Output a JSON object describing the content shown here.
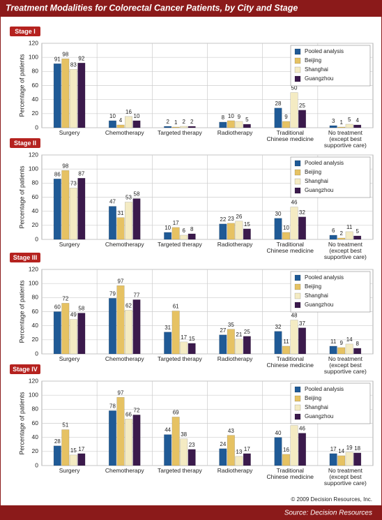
{
  "title": "Treatment Modalities for Colorectal Cancer Patients, by City and Stage",
  "copyright": "© 2009 Decision Resources, Inc.",
  "source": "Source: Decision Resources",
  "chart_data": [
    {
      "type": "bar",
      "title": "Stage I",
      "y_label": "Percentage of patients",
      "categories": [
        "Surgery",
        "Chemotherapy",
        "Targeted therapy",
        "Radiotherapy",
        "Traditional\nChinese medicine",
        "No treatment\n(except best\nsupportive care)"
      ],
      "series": [
        {
          "name": "Pooled analysis",
          "color": "#1f5a96",
          "values": [
            91,
            10,
            2,
            8,
            28,
            3
          ]
        },
        {
          "name": "Beijing",
          "color": "#e6c263",
          "values": [
            98,
            4,
            1,
            10,
            9,
            1
          ]
        },
        {
          "name": "Shanghai",
          "color": "#f4ebc3",
          "values": [
            83,
            16,
            2,
            9,
            50,
            5
          ]
        },
        {
          "name": "Guangzhou",
          "color": "#3b1a4c",
          "values": [
            92,
            10,
            2,
            5,
            25,
            4
          ]
        }
      ],
      "ylim": [
        0,
        120
      ],
      "yticks": [
        0,
        20,
        40,
        60,
        80,
        100,
        120
      ],
      "grid": true,
      "legend": "upper right"
    },
    {
      "type": "bar",
      "title": "Stage II",
      "y_label": "Percentage of patients",
      "categories": [
        "Surgery",
        "Chemotherapy",
        "Targeted therapy",
        "Radiotherapy",
        "Traditional\nChinese medicine",
        "No treatment\n(except best\nsupportive care)"
      ],
      "series": [
        {
          "name": "Pooled analysis",
          "color": "#1f5a96",
          "values": [
            86,
            47,
            10,
            22,
            30,
            6
          ]
        },
        {
          "name": "Beijing",
          "color": "#e6c263",
          "values": [
            98,
            31,
            17,
            23,
            10,
            2
          ]
        },
        {
          "name": "Shanghai",
          "color": "#f4ebc3",
          "values": [
            73,
            53,
            6,
            26,
            46,
            11
          ]
        },
        {
          "name": "Guangzhou",
          "color": "#3b1a4c",
          "values": [
            87,
            58,
            8,
            15,
            32,
            5
          ]
        }
      ],
      "ylim": [
        0,
        120
      ],
      "yticks": [
        0,
        20,
        40,
        60,
        80,
        100,
        120
      ],
      "grid": true,
      "legend": "upper right"
    },
    {
      "type": "bar",
      "title": "Stage III",
      "y_label": "Percentage of patients",
      "categories": [
        "Surgery",
        "Chemotherapy",
        "Targeted therapy",
        "Radiotherapy",
        "Traditional\nChinese medicine",
        "No treatment\n(except best\nsupportive care)"
      ],
      "series": [
        {
          "name": "Pooled analysis",
          "color": "#1f5a96",
          "values": [
            60,
            79,
            31,
            27,
            32,
            11
          ]
        },
        {
          "name": "Beijing",
          "color": "#e6c263",
          "values": [
            72,
            97,
            61,
            35,
            11,
            9
          ]
        },
        {
          "name": "Shanghai",
          "color": "#f4ebc3",
          "values": [
            49,
            62,
            17,
            21,
            48,
            14
          ]
        },
        {
          "name": "Guangzhou",
          "color": "#3b1a4c",
          "values": [
            58,
            77,
            15,
            25,
            37,
            8
          ]
        }
      ],
      "ylim": [
        0,
        120
      ],
      "yticks": [
        0,
        20,
        40,
        60,
        80,
        100,
        120
      ],
      "grid": true,
      "legend": "upper right"
    },
    {
      "type": "bar",
      "title": "Stage IV",
      "y_label": "Percentage of patients",
      "categories": [
        "Surgery",
        "Chemotherapy",
        "Targeted therapy",
        "Radiotherapy",
        "Traditional\nChinese medicine",
        "No treatment\n(except best\nsupportive care)"
      ],
      "series": [
        {
          "name": "Pooled analysis",
          "color": "#1f5a96",
          "values": [
            28,
            78,
            44,
            24,
            40,
            17
          ]
        },
        {
          "name": "Beijing",
          "color": "#e6c263",
          "values": [
            51,
            97,
            69,
            43,
            16,
            14
          ]
        },
        {
          "name": "Shanghai",
          "color": "#f4ebc3",
          "values": [
            15,
            66,
            38,
            13,
            57,
            19
          ]
        },
        {
          "name": "Guangzhou",
          "color": "#3b1a4c",
          "values": [
            17,
            72,
            23,
            17,
            46,
            18
          ]
        }
      ],
      "ylim": [
        0,
        120
      ],
      "yticks": [
        0,
        20,
        40,
        60,
        80,
        100,
        120
      ],
      "grid": true,
      "legend": "upper right"
    }
  ]
}
